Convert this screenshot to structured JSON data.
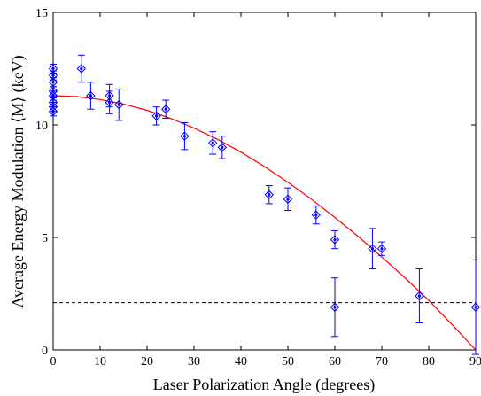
{
  "chart_data": {
    "type": "scatter",
    "title": "",
    "xlabel": "Laser Polarization Angle (degrees)",
    "ylabel": "Average Energy Modulation ⟨M⟩ (keV)",
    "xlim": [
      0,
      90
    ],
    "ylim": [
      0,
      15
    ],
    "xticks": [
      0,
      10,
      20,
      30,
      40,
      50,
      60,
      70,
      80,
      90
    ],
    "yticks": [
      0,
      5,
      10,
      15
    ],
    "grid": false,
    "legend": "none",
    "colors": {
      "points": "#0000ff",
      "fit": "#ff0000",
      "threshold": "#000000"
    },
    "series": [
      {
        "type": "scatter-errorbar",
        "marker": "diamond",
        "points": [
          {
            "x": 0,
            "y": 12.5,
            "err": 0.2
          },
          {
            "x": 0,
            "y": 12.2,
            "err": 0.2
          },
          {
            "x": 0,
            "y": 11.9,
            "err": 0.2
          },
          {
            "x": 0,
            "y": 11.5,
            "err": 0.2
          },
          {
            "x": 0,
            "y": 11.3,
            "err": 0.2
          },
          {
            "x": 0,
            "y": 11.0,
            "err": 0.2
          },
          {
            "x": 0,
            "y": 10.8,
            "err": 0.2
          },
          {
            "x": 0,
            "y": 10.6,
            "err": 0.2
          },
          {
            "x": 6,
            "y": 12.5,
            "err": 0.6
          },
          {
            "x": 8,
            "y": 11.3,
            "err": 0.6
          },
          {
            "x": 12,
            "y": 11.3,
            "err": 0.5
          },
          {
            "x": 12,
            "y": 11.0,
            "err": 0.5
          },
          {
            "x": 14,
            "y": 10.9,
            "err": 0.7
          },
          {
            "x": 22,
            "y": 10.4,
            "err": 0.4
          },
          {
            "x": 24,
            "y": 10.7,
            "err": 0.4
          },
          {
            "x": 28,
            "y": 9.5,
            "err": 0.6
          },
          {
            "x": 34,
            "y": 9.2,
            "err": 0.5
          },
          {
            "x": 36,
            "y": 9.0,
            "err": 0.5
          },
          {
            "x": 46,
            "y": 6.9,
            "err": 0.4
          },
          {
            "x": 50,
            "y": 6.7,
            "err": 0.5
          },
          {
            "x": 56,
            "y": 6.0,
            "err": 0.4
          },
          {
            "x": 60,
            "y": 4.9,
            "err": 0.4
          },
          {
            "x": 60,
            "y": 1.9,
            "err": 1.3
          },
          {
            "x": 68,
            "y": 4.5,
            "err": 0.9
          },
          {
            "x": 70,
            "y": 4.5,
            "err": 0.3
          },
          {
            "x": 78,
            "y": 2.4,
            "err": 1.2
          },
          {
            "x": 90,
            "y": 1.9,
            "err": 2.1
          }
        ]
      },
      {
        "type": "fit-line",
        "x": [
          0,
          5,
          10,
          15,
          20,
          25,
          30,
          35,
          40,
          45,
          50,
          55,
          60,
          65,
          70,
          75,
          80,
          85,
          90
        ],
        "y": [
          11.3,
          11.26,
          11.13,
          10.93,
          10.65,
          10.29,
          9.86,
          9.36,
          8.79,
          8.15,
          7.45,
          6.7,
          5.89,
          5.04,
          4.13,
          3.19,
          2.21,
          1.12,
          0.0
        ]
      },
      {
        "type": "hline",
        "y": 2.1,
        "style": "dashed"
      }
    ]
  }
}
